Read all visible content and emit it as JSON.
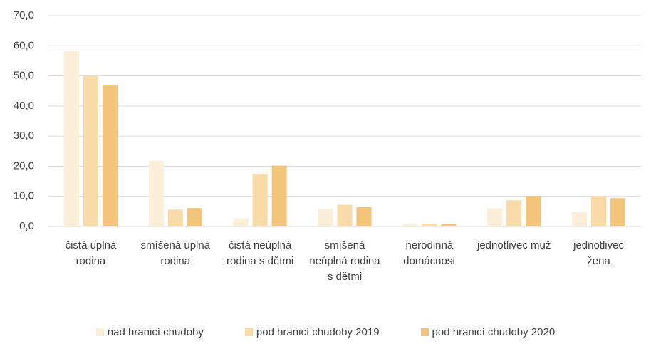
{
  "chart_data": {
    "type": "bar",
    "categories": [
      "čistá úplná rodina",
      "smíšená úplná rodina",
      "čistá neúplná rodina s dětmi",
      "smíšená neúplná rodina s dětmi",
      "nerodinná domácnost",
      "jednotlivec muž",
      "jednotlivec žena"
    ],
    "series": [
      {
        "name": "nad hranicí chudoby",
        "color": "#fcefd9",
        "values": [
          58.2,
          21.8,
          2.7,
          5.8,
          0.6,
          6.0,
          4.8
        ]
      },
      {
        "name": "pod hranicí chudoby 2019",
        "color": "#f8dba9",
        "values": [
          50.0,
          5.6,
          17.5,
          7.2,
          0.9,
          8.7,
          10.1
        ]
      },
      {
        "name": "pod hranicí chudoby 2020",
        "color": "#f2c57a",
        "values": [
          46.8,
          6.1,
          20.2,
          6.4,
          0.8,
          10.1,
          9.4
        ]
      }
    ],
    "ylim": [
      0,
      70
    ],
    "yticks": [
      {
        "value": 0,
        "label": "0,0"
      },
      {
        "value": 10,
        "label": "10,0"
      },
      {
        "value": 20,
        "label": "20,0"
      },
      {
        "value": 30,
        "label": "30,0"
      },
      {
        "value": 40,
        "label": "40,0"
      },
      {
        "value": 50,
        "label": "50,0"
      },
      {
        "value": 60,
        "label": "60,0"
      },
      {
        "value": 70,
        "label": "70,0"
      }
    ],
    "grid": true,
    "legend": "bottom"
  }
}
